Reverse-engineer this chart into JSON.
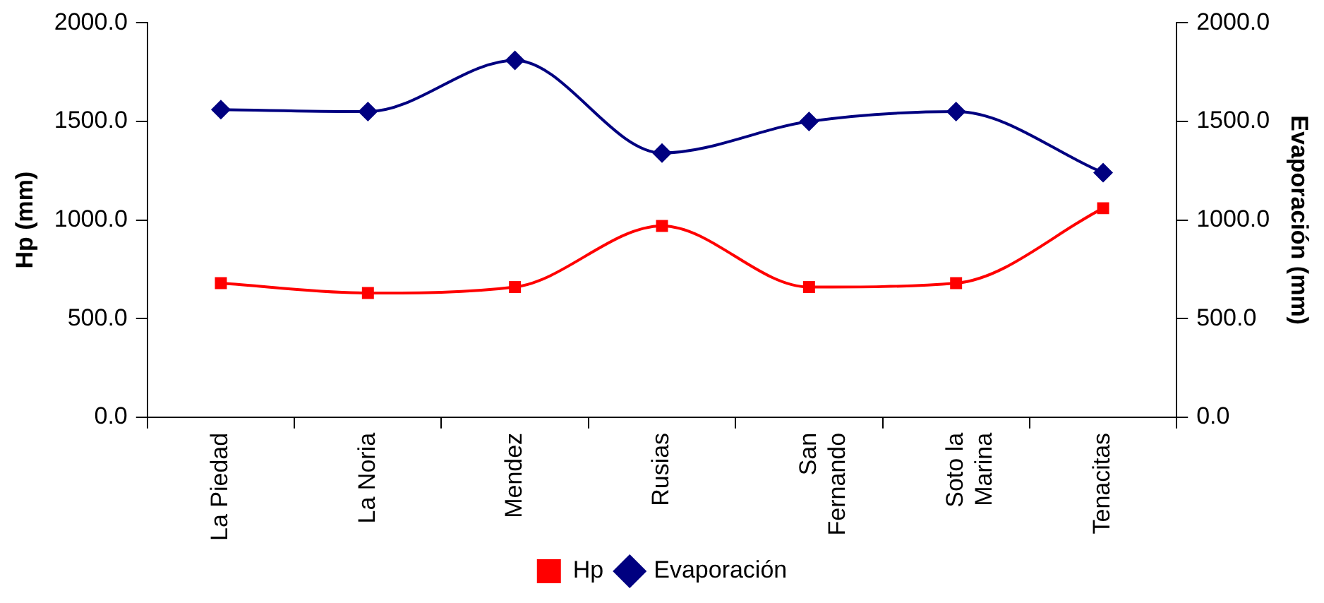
{
  "chart_data": {
    "type": "line",
    "ylabel": "Hp (mm)",
    "y2label": "Evaporación (mm)",
    "categories": [
      "La Piedad",
      "La Noria",
      "Mendez",
      "Rusias",
      "San Fernando",
      "Soto la Marina",
      "Tenacitas"
    ],
    "series": [
      {
        "name": "Hp",
        "color": "#ff0000",
        "marker": "square",
        "values": [
          680,
          630,
          660,
          970,
          660,
          680,
          1060
        ]
      },
      {
        "name": "Evaporación",
        "color": "#000080",
        "marker": "diamond",
        "axis": "y2",
        "values": [
          1560,
          1550,
          1810,
          1340,
          1500,
          1550,
          1240
        ]
      }
    ],
    "ylim": [
      0,
      2000
    ],
    "yticks": [
      {
        "value": 0,
        "label": "0.0"
      },
      {
        "value": 500,
        "label": "500.0"
      },
      {
        "value": 1000,
        "label": "1000.0"
      },
      {
        "value": 1500,
        "label": "1500.0"
      },
      {
        "value": 2000,
        "label": "2000.0"
      }
    ],
    "y2lim": [
      0,
      2000
    ],
    "y2ticks": [
      {
        "value": 0,
        "label": "0.0"
      },
      {
        "value": 500,
        "label": "500.0"
      },
      {
        "value": 1000,
        "label": "1000.0"
      },
      {
        "value": 1500,
        "label": "1500.0"
      },
      {
        "value": 2000,
        "label": "2000.0"
      }
    ],
    "grid": false,
    "legend": "bottom",
    "line_style": "solid"
  }
}
